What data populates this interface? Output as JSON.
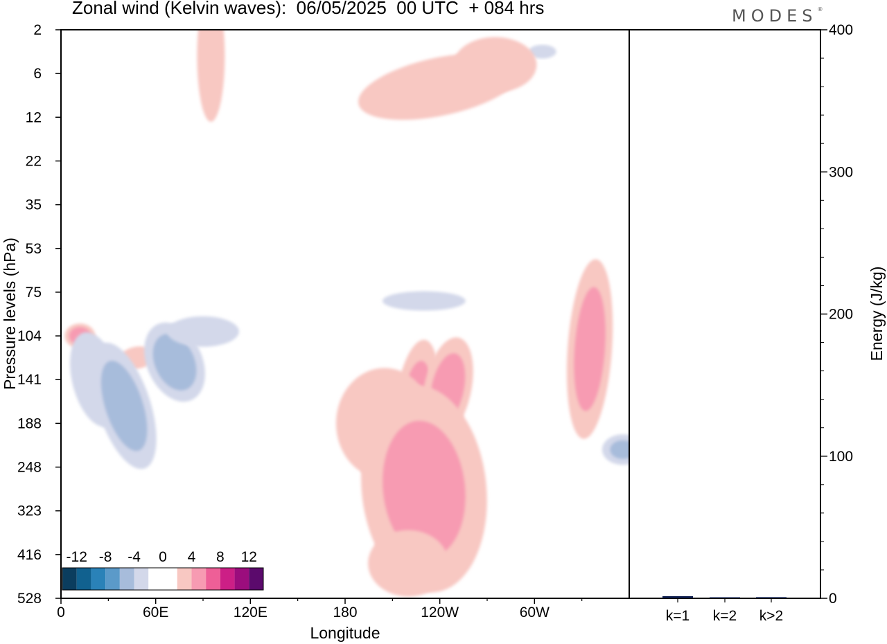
{
  "title": "Zonal wind (Kelvin waves):  06/05/2025  00 UTC  + 084 hrs",
  "logo": "MODES",
  "colors": {
    "neg": [
      "#0b3d5e",
      "#11618f",
      "#2a82b8",
      "#5b9ac9",
      "#a7bcdb",
      "#d3d8ea"
    ],
    "pos": [
      "#f8c8c2",
      "#f79bb2",
      "#ee5f97",
      "#cc1f86",
      "#9b0d7d",
      "#5b0a6c"
    ]
  },
  "chart_data": [
    {
      "type": "heatmap",
      "title": "Zonal wind (Kelvin waves):  06/05/2025  00 UTC  + 084 hrs",
      "xlabel": "Longitude",
      "ylabel": "Pressure levels (hPa)",
      "x_ticks": [
        "0",
        "60E",
        "120E",
        "180",
        "120W",
        "60W"
      ],
      "x_range": [
        0,
        360
      ],
      "y_ticks": [
        "2",
        "6",
        "12",
        "22",
        "35",
        "53",
        "75",
        "104",
        "141",
        "188",
        "248",
        "323",
        "416",
        "528"
      ],
      "colorbar": {
        "labels": [
          "-12",
          "-8",
          "-4",
          "0",
          "4",
          "8",
          "12"
        ],
        "levels": [
          -12,
          -10,
          -8,
          -6,
          -4,
          -2,
          0,
          2,
          4,
          6,
          8,
          10,
          12
        ]
      },
      "features": [
        {
          "lon": 12,
          "lev": 7,
          "value": 5.5
        },
        {
          "lon": 48,
          "lev": 7.5,
          "value": 2.5
        },
        {
          "lon": 22,
          "lev": 8,
          "value": -2.5
        },
        {
          "lon": 40,
          "lev": 8.6,
          "value": -5.5
        },
        {
          "lon": 72,
          "lev": 7.6,
          "value": -5.5
        },
        {
          "lon": 90,
          "lev": 6.9,
          "value": -3
        },
        {
          "lon": 225,
          "lev": 8.5,
          "value": 4.5
        },
        {
          "lon": 245,
          "lev": 8.2,
          "value": 5
        },
        {
          "lon": 205,
          "lev": 9,
          "value": 3
        },
        {
          "lon": 230,
          "lev": 10.5,
          "value": 4.5
        },
        {
          "lon": 220,
          "lev": 12.2,
          "value": 2.5
        },
        {
          "lon": 335,
          "lev": 7.3,
          "value": 5
        },
        {
          "lon": 356,
          "lev": 9.6,
          "value": -4
        },
        {
          "lon": 240,
          "lev": 1.3,
          "value": 3.5
        },
        {
          "lon": 305,
          "lev": 0.5,
          "value": -3
        },
        {
          "lon": 95,
          "lev": 0.6,
          "value": 2.5
        },
        {
          "lon": 275,
          "lev": 0.8,
          "value": 2.5
        },
        {
          "lon": 230,
          "lev": 6.2,
          "value": -2.5
        }
      ]
    },
    {
      "type": "bar",
      "categories": [
        "k=1",
        "k=2",
        "k>2"
      ],
      "values": [
        1.5,
        0.3,
        0.8
      ],
      "ylabel": "Energy (J/kg)",
      "ylim": [
        0,
        400
      ],
      "y_ticks": [
        "0",
        "100",
        "200",
        "300",
        "400"
      ]
    }
  ]
}
